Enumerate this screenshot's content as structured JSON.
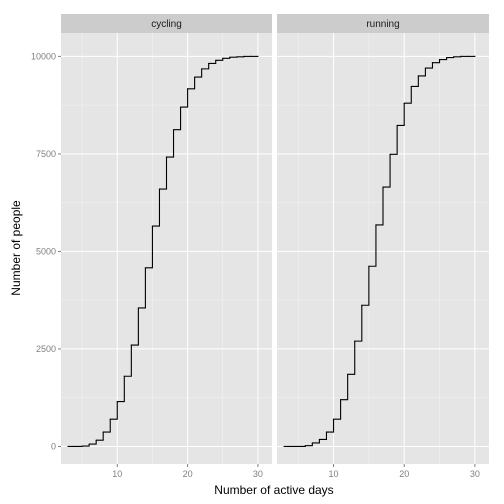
{
  "chart_data": {
    "type": "line",
    "step": true,
    "xlabel": "Number of active days",
    "ylabel": "Number of people",
    "xlim": [
      2,
      32
    ],
    "ylim": [
      -450,
      10600
    ],
    "x_ticks": [
      10,
      20,
      30
    ],
    "x_tick_labels": [
      "10",
      "20",
      "30"
    ],
    "y_ticks": [
      0,
      2500,
      5000,
      7500,
      10000
    ],
    "y_tick_labels": [
      "0",
      "2500",
      "5000",
      "7500",
      "10000"
    ],
    "grid": true,
    "legend": "none",
    "colors": {
      "panel_bg": "#e5e5e5",
      "strip_bg": "#cccccc",
      "grid": "#ffffff",
      "line": "#000000"
    },
    "panels": [
      {
        "name": "cycling",
        "x": [
          3,
          4,
          5,
          6,
          7,
          8,
          9,
          10,
          11,
          12,
          13,
          14,
          15,
          16,
          17,
          18,
          19,
          20,
          21,
          22,
          23,
          24,
          25,
          26,
          27,
          28,
          29,
          30
        ],
        "y": [
          0,
          0,
          10,
          60,
          160,
          370,
          700,
          1150,
          1800,
          2600,
          3550,
          4580,
          5650,
          6600,
          7420,
          8120,
          8700,
          9170,
          9470,
          9680,
          9820,
          9900,
          9950,
          9980,
          9990,
          10000,
          10000,
          10000
        ]
      },
      {
        "name": "running",
        "x": [
          3,
          4,
          5,
          6,
          7,
          8,
          9,
          10,
          11,
          12,
          13,
          14,
          15,
          16,
          17,
          18,
          19,
          20,
          21,
          22,
          23,
          24,
          25,
          26,
          27,
          28,
          29,
          30
        ],
        "y": [
          0,
          0,
          0,
          20,
          90,
          180,
          370,
          700,
          1200,
          1850,
          2700,
          3620,
          4620,
          5680,
          6650,
          7490,
          8230,
          8800,
          9230,
          9500,
          9700,
          9840,
          9920,
          9970,
          9990,
          10000,
          10000,
          10000
        ]
      }
    ]
  }
}
